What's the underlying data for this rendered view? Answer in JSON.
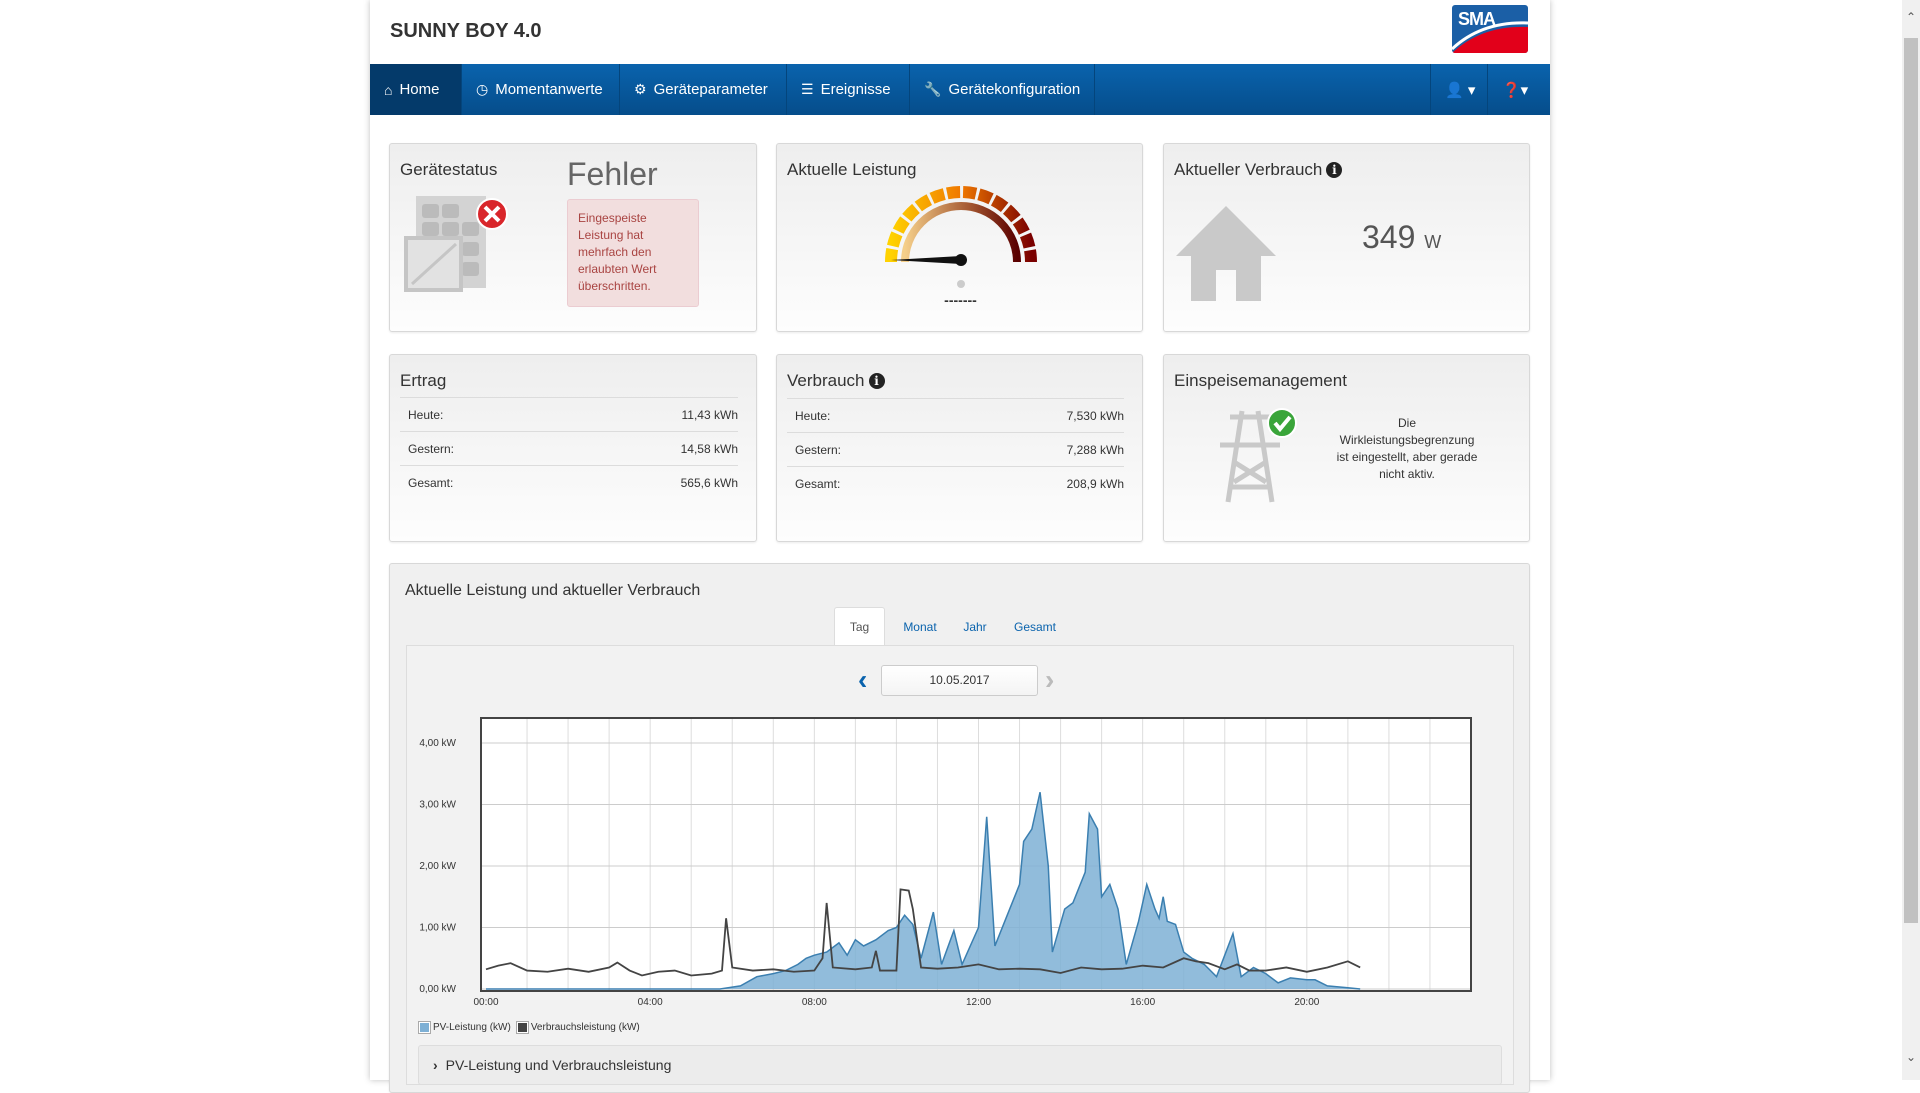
{
  "header": {
    "title": "SUNNY BOY 4.0",
    "logo_text": "SMA"
  },
  "nav": {
    "items": [
      {
        "label": "Home",
        "icon": "home-icon",
        "active": true
      },
      {
        "label": "Momentanwerte",
        "icon": "gauge-icon"
      },
      {
        "label": "Geräteparameter",
        "icon": "gear-icon"
      },
      {
        "label": "Ereignisse",
        "icon": "list-icon"
      },
      {
        "label": "Gerätekonfiguration",
        "icon": "wrench-icon"
      }
    ],
    "user_icon": "user-icon",
    "help_icon": "help-icon"
  },
  "status": {
    "title": "Gerätestatus",
    "value": "Fehler",
    "message": "Eingespeiste Leistung hat mehrfach den erlaubten Wert überschritten.",
    "color": "#a94442"
  },
  "power": {
    "title": "Aktuelle Leistung",
    "value": "-------"
  },
  "consumption_now": {
    "title": "Aktueller Verbrauch",
    "value": "349",
    "unit": "W"
  },
  "yield": {
    "title": "Ertrag",
    "rows": [
      {
        "label": "Heute:",
        "value": "11,43 kWh"
      },
      {
        "label": "Gestern:",
        "value": "14,58 kWh"
      },
      {
        "label": "Gesamt:",
        "value": "565,6 kWh"
      }
    ]
  },
  "usage": {
    "title": "Verbrauch",
    "rows": [
      {
        "label": "Heute:",
        "value": "7,530 kWh"
      },
      {
        "label": "Gestern:",
        "value": "7,288 kWh"
      },
      {
        "label": "Gesamt:",
        "value": "208,9 kWh"
      }
    ]
  },
  "feed": {
    "title": "Einspeisemanagement",
    "message": "Die Wirkleistungsbegrenzung ist eingestellt, aber gerade nicht aktiv."
  },
  "chart_panel": {
    "title": "Aktuelle Leistung und aktueller Verbrauch",
    "tabs": [
      "Tag",
      "Monat",
      "Jahr",
      "Gesamt"
    ],
    "active_tab": "Tag",
    "date": "10.05.2017",
    "collapse_label": "PV-Leistung und Verbrauchsleistung"
  },
  "chart_data": {
    "type": "area",
    "xlim": [
      0,
      24
    ],
    "ylim": [
      0,
      4.4
    ],
    "x_ticks": [
      {
        "v": 0,
        "label": "00:00"
      },
      {
        "v": 4,
        "label": "04:00"
      },
      {
        "v": 8,
        "label": "08:00"
      },
      {
        "v": 12,
        "label": "12:00"
      },
      {
        "v": 16,
        "label": "16:00"
      },
      {
        "v": 20,
        "label": "20:00"
      }
    ],
    "y_ticks": [
      {
        "v": 0,
        "label": "0,00 kW"
      },
      {
        "v": 1,
        "label": "1,00 kW"
      },
      {
        "v": 2,
        "label": "2,00 kW"
      },
      {
        "v": 3,
        "label": "3,00 kW"
      },
      {
        "v": 4,
        "label": "4,00 kW"
      }
    ],
    "legend": "bottom-left",
    "series": [
      {
        "name": "PV-Leistung (kW)",
        "color": "#7eb0d5",
        "stroke": "#3b7fb0",
        "type": "area",
        "points": [
          [
            0,
            0
          ],
          [
            5.7,
            0
          ],
          [
            6.2,
            0.05
          ],
          [
            6.6,
            0.2
          ],
          [
            7,
            0.25
          ],
          [
            7.3,
            0.3
          ],
          [
            7.6,
            0.4
          ],
          [
            7.8,
            0.5
          ],
          [
            8,
            0.55
          ],
          [
            8.3,
            0.6
          ],
          [
            8.6,
            0.75
          ],
          [
            8.8,
            0.55
          ],
          [
            9,
            0.8
          ],
          [
            9.2,
            0.7
          ],
          [
            9.5,
            0.8
          ],
          [
            9.8,
            0.95
          ],
          [
            10,
            1.0
          ],
          [
            10.2,
            1.2
          ],
          [
            10.4,
            1.05
          ],
          [
            10.6,
            0.5
          ],
          [
            10.9,
            1.25
          ],
          [
            11.1,
            0.4
          ],
          [
            11.4,
            0.95
          ],
          [
            11.6,
            0.4
          ],
          [
            11.8,
            0.7
          ],
          [
            12,
            1.0
          ],
          [
            12.2,
            2.8
          ],
          [
            12.4,
            0.7
          ],
          [
            12.7,
            1.2
          ],
          [
            13,
            1.7
          ],
          [
            13.1,
            2.4
          ],
          [
            13.3,
            2.6
          ],
          [
            13.5,
            3.2
          ],
          [
            13.7,
            2.0
          ],
          [
            13.8,
            0.6
          ],
          [
            14.1,
            1.3
          ],
          [
            14.3,
            1.4
          ],
          [
            14.6,
            1.9
          ],
          [
            14.7,
            2.85
          ],
          [
            14.9,
            2.6
          ],
          [
            15,
            1.5
          ],
          [
            15.2,
            1.7
          ],
          [
            15.4,
            1.3
          ],
          [
            15.6,
            0.4
          ],
          [
            15.9,
            1.1
          ],
          [
            16.1,
            1.7
          ],
          [
            16.3,
            1.3
          ],
          [
            16.4,
            1.15
          ],
          [
            16.5,
            1.5
          ],
          [
            16.6,
            1.1
          ],
          [
            16.8,
            1.05
          ],
          [
            17,
            0.6
          ],
          [
            17.2,
            0.5
          ],
          [
            17.5,
            0.4
          ],
          [
            17.8,
            0.2
          ],
          [
            18,
            0.55
          ],
          [
            18.2,
            0.9
          ],
          [
            18.4,
            0.2
          ],
          [
            18.7,
            0.35
          ],
          [
            19,
            0.25
          ],
          [
            19.3,
            0.1
          ],
          [
            19.6,
            0.18
          ],
          [
            20,
            0.15
          ],
          [
            20.2,
            0.15
          ],
          [
            20.5,
            0.05
          ],
          [
            21,
            0.02
          ],
          [
            21.3,
            0
          ]
        ]
      },
      {
        "name": "Verbrauchsleistung (kW)",
        "color": "#444444",
        "stroke": "#444444",
        "type": "line",
        "points": [
          [
            0,
            0.32
          ],
          [
            0.3,
            0.38
          ],
          [
            0.6,
            0.42
          ],
          [
            1,
            0.3
          ],
          [
            1.5,
            0.28
          ],
          [
            2,
            0.33
          ],
          [
            2.5,
            0.28
          ],
          [
            3,
            0.35
          ],
          [
            3.2,
            0.43
          ],
          [
            3.5,
            0.3
          ],
          [
            3.8,
            0.22
          ],
          [
            4.2,
            0.28
          ],
          [
            4.6,
            0.3
          ],
          [
            5,
            0.22
          ],
          [
            5.5,
            0.25
          ],
          [
            5.75,
            0.3
          ],
          [
            5.85,
            1.15
          ],
          [
            6,
            0.35
          ],
          [
            6.5,
            0.3
          ],
          [
            7,
            0.32
          ],
          [
            7.5,
            0.28
          ],
          [
            8,
            0.3
          ],
          [
            8.2,
            0.5
          ],
          [
            8.3,
            1.4
          ],
          [
            8.45,
            0.35
          ],
          [
            9,
            0.32
          ],
          [
            9.4,
            0.35
          ],
          [
            9.5,
            0.62
          ],
          [
            9.6,
            0.3
          ],
          [
            10,
            0.3
          ],
          [
            10.1,
            1.62
          ],
          [
            10.3,
            1.6
          ],
          [
            10.4,
            1.3
          ],
          [
            10.6,
            0.35
          ],
          [
            11,
            0.33
          ],
          [
            11.5,
            0.35
          ],
          [
            12,
            0.4
          ],
          [
            12.5,
            0.32
          ],
          [
            13,
            0.33
          ],
          [
            13.5,
            0.32
          ],
          [
            14,
            0.26
          ],
          [
            14.5,
            0.35
          ],
          [
            15,
            0.32
          ],
          [
            15.5,
            0.33
          ],
          [
            16,
            0.38
          ],
          [
            16.5,
            0.35
          ],
          [
            17,
            0.5
          ],
          [
            17.3,
            0.45
          ],
          [
            17.6,
            0.42
          ],
          [
            18,
            0.32
          ],
          [
            18.3,
            0.4
          ],
          [
            18.6,
            0.3
          ],
          [
            19,
            0.3
          ],
          [
            19.5,
            0.35
          ],
          [
            20,
            0.28
          ],
          [
            20.5,
            0.35
          ],
          [
            21,
            0.45
          ],
          [
            21.3,
            0.35
          ]
        ]
      }
    ]
  }
}
